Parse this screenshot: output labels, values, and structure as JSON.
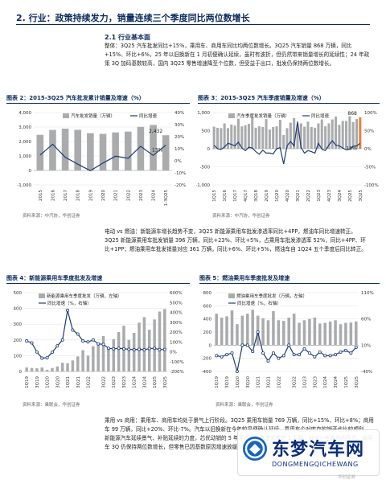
{
  "section": {
    "title": "2. 行业：政策持续发力，销量连续三个季度同比两位数增长"
  },
  "subsection": {
    "title": "2.1 行业基本面"
  },
  "paragraphs": {
    "p1": "整体：3Q25 汽车批发同比+15%，乘用车、商用车同比均两位数增长。3Q25 汽车销量 868 万辆，同比+15%、环比+6%，25 年以旧换新在 1 月初便确认延续，虽时有波折，但仍然带来销量增长的延续性；24 年政策 3Q 加码基数较高，国内 3Q25 零售增速降至个位数，但受益于出口，批发仍保持两位数增长。",
    "p2": "电动 vs 燃油：新能源车增长趋势不变，3Q25 新能源乘用车批发渗透率同比+4PP，燃油车同比增速转正。3Q25 新能源乘用车批发销量 396 万辆，同比+23%、环比+5%，占乘用车批发渗透率 52%，同比+4PP、环比+1PP；燃油乘用车批发销量对应 361 万辆，同比+6%、环比+5%，燃油车自 1Q24 五个季度后同比转正。",
    "p3": "乘用 vs 商用：乘用车、商用车均处于景气上行阶段。3Q25 乘用车销量 769 万辆，同比+15%、环比+8%；商用车 99 万辆，同比+20%、环比-7%。汽车以旧换新在今年较早便确认延续，乘用车企对库存的销开也比较顺利，新能源汽车延续景气、补贴延续的力度，芯优动销的 5 年平均前三季度去库的 1 万辆，补充一些库存的压力，商用车 3Q 仍保持两位数增长，但零售已因基数原因增速放缓，乘用车 3Q 同比增速回升，环比保持两位数增长。"
  },
  "figures": {
    "f2": {
      "title": "图表 2：2015-3Q25 汽车批发累计销量及增速（%）",
      "source": "资料来源：中汽协，华创证券",
      "chart_data": {
        "type": "bar",
        "categories": [
          "2015",
          "2016",
          "2017",
          "2018",
          "2019",
          "2020",
          "2021",
          "2022",
          "2023",
          "2024",
          "1-3Q25"
        ],
        "series": [
          {
            "name": "汽车批发销量（万辆）",
            "values": [
              2460,
              2800,
              2888,
              2808,
              2577,
              2527,
              2628,
              2686,
              3009,
              3144,
              2432
            ]
          },
          {
            "name": "同比增速",
            "values": [
              4.7,
              13.7,
              3.0,
              -2.8,
              -8.2,
              -1.9,
              3.8,
              2.1,
              12.0,
              4.5,
              13.0
            ]
          }
        ],
        "ylim_left": [
          -1000,
          4000
        ],
        "yticks_left": [
          "4,000",
          "3,000",
          "2,000",
          "1,000",
          "0",
          "-1,000"
        ],
        "ylim_right": [
          -20,
          40
        ],
        "yticks_right": [
          "40%",
          "30%",
          "20%",
          "10%",
          "0%",
          "-10%",
          "-20%"
        ],
        "annotations": [
          "2,432",
          "13%"
        ]
      }
    },
    "f3": {
      "title": "图表 3：2015-3Q25 汽车季度销量及增速（%）",
      "source": "资料来源：中汽协，华创证券",
      "chart_data": {
        "type": "bar",
        "xticks": [
          "1Q15",
          "1Q16",
          "1Q17",
          "4Q17",
          "3Q18",
          "2Q19",
          "1Q20",
          "4Q20",
          "3Q21",
          "2Q22",
          "1Q23",
          "4Q23",
          "3Q24",
          "2Q25",
          "3Q25"
        ],
        "series": [
          {
            "name": "汽车季度批发销量（万辆）",
            "values": [
              610,
              580,
              570,
              700,
              570,
              670,
              640,
              830,
              620,
              650,
              690,
              870,
              580,
              620,
              600,
              820,
              530,
              600,
              620,
              800,
              380,
              570,
              720,
              850,
              650,
              700,
              610,
              750,
              600,
              580,
              700,
              810,
              620,
              700,
              810,
              890,
              660,
              770,
              770,
              900,
              740,
              820,
              868
            ]
          },
          {
            "name": "同比增速",
            "values": [
              10,
              0,
              -2,
              5,
              15,
              12,
              8,
              18,
              2,
              -5,
              4,
              2,
              -8,
              -15,
              -4,
              -12,
              -12,
              -14,
              0,
              3,
              -42,
              8,
              20,
              8,
              75,
              4,
              -12,
              -5,
              -8,
              -12,
              15,
              -1,
              -5,
              10,
              22,
              10,
              8,
              2,
              -3,
              -1,
              7,
              8,
              15
            ]
          }
        ],
        "ylim_left": [
          -1000,
          1000
        ],
        "yticks_left": [
          "1,000",
          "500",
          "0",
          "-500",
          "-1,000"
        ],
        "ylim_right": [
          -100,
          100
        ],
        "yticks_right": [
          "100%",
          "50%",
          "0%",
          "-50%",
          "-100%"
        ],
        "annotations": [
          "868",
          "15%"
        ]
      }
    },
    "f4": {
      "title": "图表 4：新能源乘用车季度批发及增速",
      "source": "资料来源：乘联会，华创证券",
      "chart_data": {
        "type": "bar",
        "xticks": [
          "1Q19",
          "3Q19",
          "1Q20",
          "3Q20",
          "1Q21",
          "3Q21",
          "1Q22",
          "3Q22",
          "1Q23",
          "3Q23",
          "1Q24",
          "3Q24",
          "1Q25",
          "3Q25"
        ],
        "series": [
          {
            "name": "新能源乘用车季度批发（万辆，左轴）",
            "values": [
              25,
              22,
              20,
              25,
              10,
              22,
              32,
              55,
              52,
              70,
              95,
              135,
              100,
              160,
              180,
              225,
              150,
              205,
              250,
              290,
              200,
              245,
              310,
              345,
              265,
              330,
              380,
              396
            ]
          },
          {
            "name": "同比增速（%，右轴）",
            "values": [
              110,
              90,
              -2,
              -65,
              -60,
              -5,
              60,
              120,
              420,
              220,
              180,
              110,
              100,
              120,
              80,
              75,
              35,
              30,
              35,
              30,
              25,
              20,
              25,
              20,
              32,
              35,
              22,
              23
            ]
          }
        ],
        "ylim_left": [
          0,
          500
        ],
        "yticks_left": [
          "500",
          "400",
          "300",
          "200",
          "100",
          "0"
        ],
        "ylim_right": [
          -200,
          600
        ],
        "yticks_right": [
          "600%",
          "500%",
          "400%",
          "300%",
          "200%",
          "100%",
          "0%",
          "-100%",
          "-200%"
        ]
      }
    },
    "f5": {
      "title": "图表 5：燃油乘用车季度批发及增速",
      "source": "资料来源：乘联会，华创证券",
      "chart_data": {
        "type": "bar",
        "xticks": [
          "1Q19",
          "3Q19",
          "1Q20",
          "3Q20",
          "1Q21",
          "3Q21",
          "1Q22",
          "3Q22",
          "1Q23",
          "3Q23",
          "1Q24",
          "3Q24",
          "1Q25",
          "3Q25"
        ],
        "series": [
          {
            "name": "燃油乘用车季度批发（万辆，左轴）",
            "values": [
              480,
              420,
              440,
              530,
              320,
              450,
              480,
              540,
              450,
              410,
              380,
              520,
              380,
              370,
              420,
              480,
              340,
              380,
              400,
              420,
              330,
              340,
              360,
              380,
              320,
              340,
              345,
              361
            ]
          },
          {
            "name": "同比增速（%，右轴）",
            "values": [
              -10,
              -12,
              -8,
              -5,
              -40,
              10,
              10,
              -2,
              35,
              -5,
              -20,
              -5,
              -15,
              -10,
              10,
              -8,
              -8,
              3,
              -5,
              -12,
              -3,
              -10,
              -10,
              -8,
              -3,
              0,
              -5,
              6
            ]
          }
        ],
        "ylim_left": [
          -400,
          800
        ],
        "yticks_left": [
          "800",
          "600",
          "400",
          "200",
          "0",
          "-200",
          "-400"
        ],
        "ylim_right": [
          -40,
          110
        ],
        "yticks_right": [
          "110%",
          "60%",
          "10%",
          "-40%"
        ]
      }
    }
  },
  "watermark": {
    "brand": "东梦汽车网",
    "sub": "DONGMENGQICHEWANG",
    "corner": "华创证券"
  }
}
